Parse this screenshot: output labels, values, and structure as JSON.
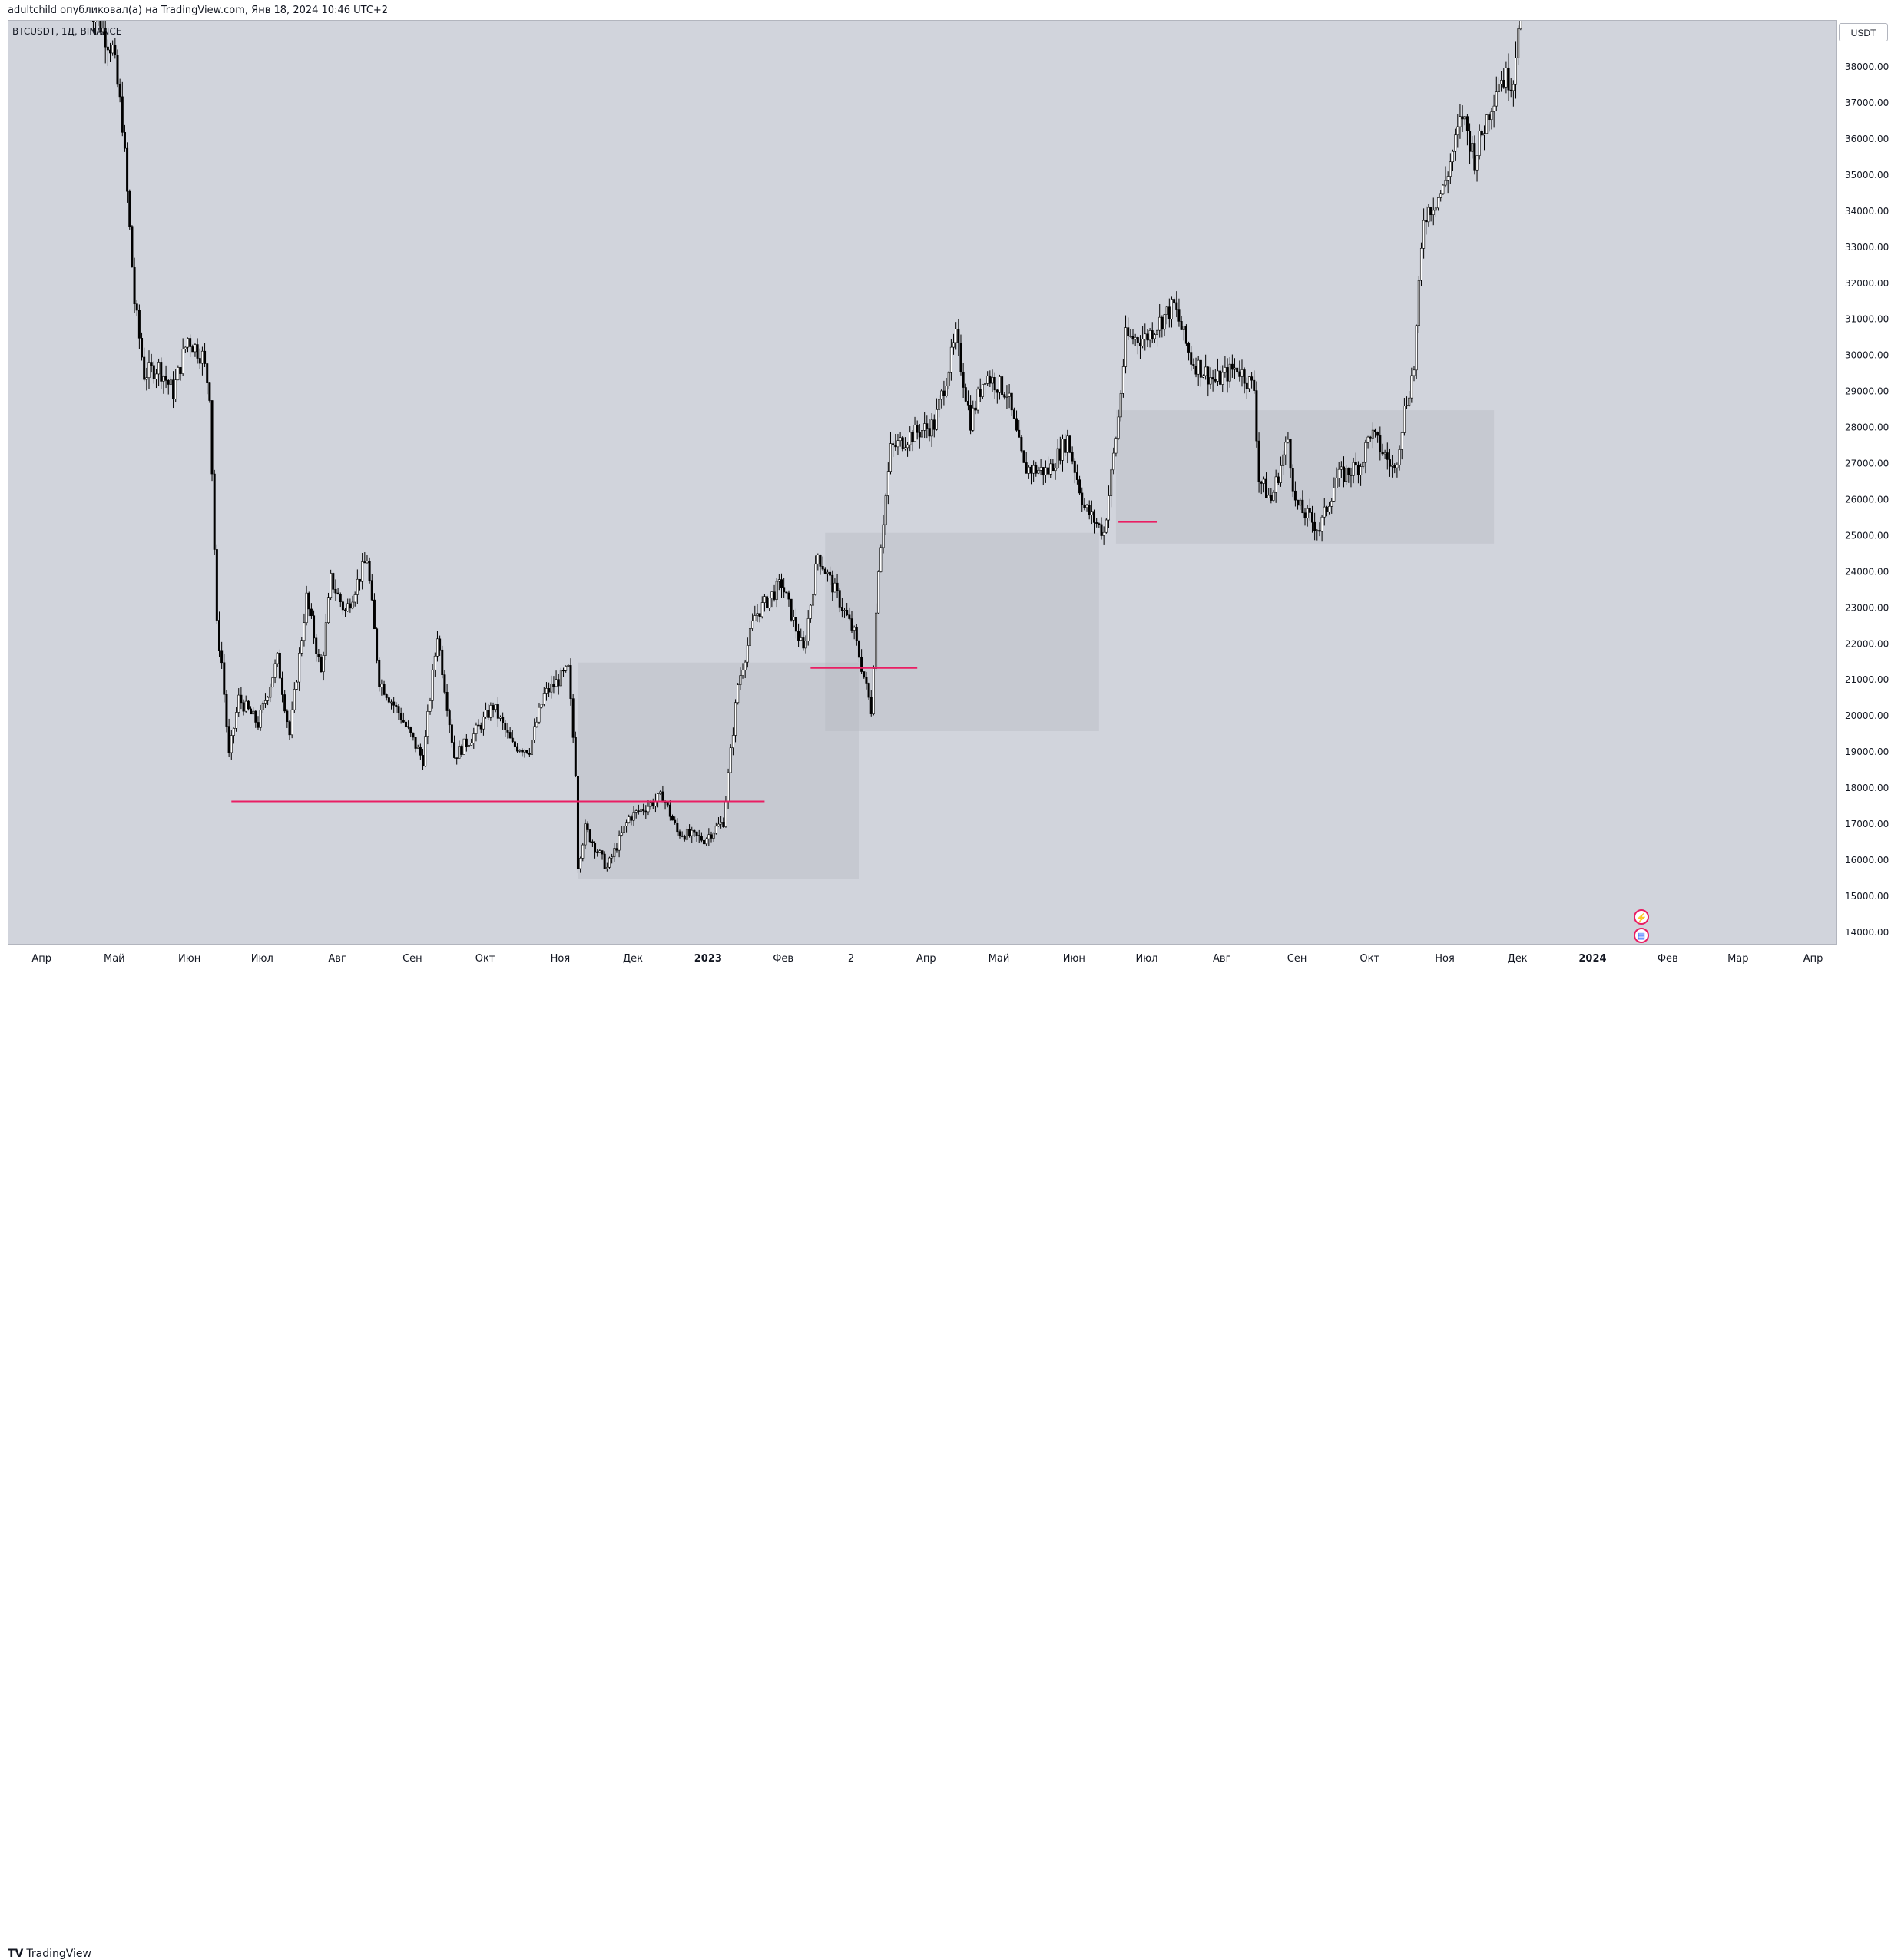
{
  "header": {
    "text": "adultchild опубликовал(а) на TradingView.com, Янв 18, 2024 10:46 UTC+2"
  },
  "symbol": {
    "label": "BTCUSDT, 1Д, BINANCE"
  },
  "currency": "USDT",
  "footer": {
    "logo_mark": "TV",
    "logo_text": "TradingView"
  },
  "event_icons": [
    {
      "name": "flash-icon",
      "glyph": "⚡"
    },
    {
      "name": "us-flag-icon",
      "glyph": "▤"
    }
  ],
  "colors": {
    "background": "#d1d4dc",
    "candle": "#000000",
    "zone_fill": "#b2b5be",
    "level_line": "#e91e63",
    "accent": "#e91e63"
  },
  "chart_data": {
    "type": "candlestick",
    "title": "",
    "symbol": "BTCUSDT",
    "timeframe": "1Д",
    "exchange": "BINANCE",
    "ylim": [
      13700,
      39300
    ],
    "y_ticks": [
      14000,
      15000,
      16000,
      17000,
      18000,
      19000,
      20000,
      21000,
      22000,
      23000,
      24000,
      25000,
      26000,
      27000,
      28000,
      29000,
      30000,
      31000,
      32000,
      33000,
      34000,
      35000,
      36000,
      37000,
      38000
    ],
    "y_tick_labels": [
      "14000.00",
      "15000.00",
      "16000.00",
      "17000.00",
      "18000.00",
      "19000.00",
      "20000.00",
      "21000.00",
      "22000.00",
      "23000.00",
      "24000.00",
      "25000.00",
      "26000.00",
      "27000.00",
      "28000.00",
      "29000.00",
      "30000.00",
      "31000.00",
      "32000.00",
      "33000.00",
      "34000.00",
      "35000.00",
      "36000.00",
      "37000.00",
      "38000.00"
    ],
    "x_tick_labels": [
      {
        "label": "Апр",
        "date": "2022-04-01",
        "bold": false
      },
      {
        "label": "Май",
        "date": "2022-05-01",
        "bold": false
      },
      {
        "label": "Июн",
        "date": "2022-06-01",
        "bold": false
      },
      {
        "label": "Июл",
        "date": "2022-07-01",
        "bold": false
      },
      {
        "label": "Авг",
        "date": "2022-08-01",
        "bold": false
      },
      {
        "label": "Сен",
        "date": "2022-09-01",
        "bold": false
      },
      {
        "label": "Окт",
        "date": "2022-10-01",
        "bold": false
      },
      {
        "label": "Ноя",
        "date": "2022-11-01",
        "bold": false
      },
      {
        "label": "Дек",
        "date": "2022-12-01",
        "bold": false
      },
      {
        "label": "2023",
        "date": "2023-01-01",
        "bold": true
      },
      {
        "label": "Фев",
        "date": "2023-02-01",
        "bold": false
      },
      {
        "label": "2",
        "date": "2023-03-01",
        "bold": false
      },
      {
        "label": "Апр",
        "date": "2023-04-01",
        "bold": false
      },
      {
        "label": "Май",
        "date": "2023-05-01",
        "bold": false
      },
      {
        "label": "Июн",
        "date": "2023-06-01",
        "bold": false
      },
      {
        "label": "Июл",
        "date": "2023-07-01",
        "bold": false
      },
      {
        "label": "Авг",
        "date": "2023-08-01",
        "bold": false
      },
      {
        "label": "Сен",
        "date": "2023-09-01",
        "bold": false
      },
      {
        "label": "Окт",
        "date": "2023-10-01",
        "bold": false
      },
      {
        "label": "Ноя",
        "date": "2023-11-01",
        "bold": false
      },
      {
        "label": "Дек",
        "date": "2023-12-01",
        "bold": false
      },
      {
        "label": "2024",
        "date": "2024-01-01",
        "bold": true
      },
      {
        "label": "Фев",
        "date": "2024-02-01",
        "bold": false
      },
      {
        "label": "Мар",
        "date": "2024-03-01",
        "bold": false
      },
      {
        "label": "Апр",
        "date": "2024-04-01",
        "bold": false
      }
    ],
    "x_start": "2022-03-18",
    "x_end": "2024-04-10",
    "price_path": [
      [
        "2022-04-20",
        40000
      ],
      [
        "2022-05-01",
        38500
      ],
      [
        "2022-05-05",
        36500
      ],
      [
        "2022-05-10",
        31500
      ],
      [
        "2022-05-14",
        29500
      ],
      [
        "2022-05-20",
        29700
      ],
      [
        "2022-05-26",
        29000
      ],
      [
        "2022-06-01",
        30500
      ],
      [
        "2022-06-07",
        30000
      ],
      [
        "2022-06-10",
        29000
      ],
      [
        "2022-06-13",
        22500
      ],
      [
        "2022-06-15",
        21500
      ],
      [
        "2022-06-18",
        18900
      ],
      [
        "2022-06-22",
        20500
      ],
      [
        "2022-06-30",
        19800
      ],
      [
        "2022-07-08",
        21600
      ],
      [
        "2022-07-13",
        19500
      ],
      [
        "2022-07-20",
        23300
      ],
      [
        "2022-07-26",
        21200
      ],
      [
        "2022-07-30",
        23800
      ],
      [
        "2022-08-05",
        22900
      ],
      [
        "2022-08-14",
        24400
      ],
      [
        "2022-08-19",
        21000
      ],
      [
        "2022-08-28",
        20000
      ],
      [
        "2022-09-06",
        18800
      ],
      [
        "2022-09-12",
        22300
      ],
      [
        "2022-09-19",
        18900
      ],
      [
        "2022-09-27",
        19500
      ],
      [
        "2022-10-05",
        20300
      ],
      [
        "2022-10-13",
        19200
      ],
      [
        "2022-10-20",
        19100
      ],
      [
        "2022-10-26",
        20600
      ],
      [
        "2022-11-05",
        21300
      ],
      [
        "2022-11-08",
        18500
      ],
      [
        "2022-11-09",
        15900
      ],
      [
        "2022-11-12",
        16900
      ],
      [
        "2022-11-21",
        15800
      ],
      [
        "2022-11-30",
        17200
      ],
      [
        "2022-12-14",
        17800
      ],
      [
        "2022-12-20",
        16800
      ],
      [
        "2022-12-31",
        16600
      ],
      [
        "2023-01-08",
        17100
      ],
      [
        "2023-01-14",
        20900
      ],
      [
        "2023-01-21",
        22800
      ],
      [
        "2023-02-01",
        23700
      ],
      [
        "2023-02-10",
        21800
      ],
      [
        "2023-02-16",
        24500
      ],
      [
        "2023-02-25",
        23200
      ],
      [
        "2023-03-03",
        22300
      ],
      [
        "2023-03-10",
        20200
      ],
      [
        "2023-03-13",
        24200
      ],
      [
        "2023-03-18",
        27400
      ],
      [
        "2023-03-26",
        27800
      ],
      [
        "2023-04-05",
        28100
      ],
      [
        "2023-04-14",
        30500
      ],
      [
        "2023-04-20",
        28200
      ],
      [
        "2023-04-26",
        29500
      ],
      [
        "2023-05-05",
        29000
      ],
      [
        "2023-05-12",
        26900
      ],
      [
        "2023-05-22",
        26800
      ],
      [
        "2023-05-30",
        27700
      ],
      [
        "2023-06-06",
        25800
      ],
      [
        "2023-06-14",
        25100
      ],
      [
        "2023-06-20",
        28300
      ],
      [
        "2023-06-23",
        30500
      ],
      [
        "2023-07-01",
        30500
      ],
      [
        "2023-07-13",
        31400
      ],
      [
        "2023-07-20",
        29900
      ],
      [
        "2023-07-30",
        29300
      ],
      [
        "2023-08-08",
        29700
      ],
      [
        "2023-08-15",
        29100
      ],
      [
        "2023-08-17",
        26600
      ],
      [
        "2023-08-22",
        26000
      ],
      [
        "2023-08-29",
        27700
      ],
      [
        "2023-09-01",
        25900
      ],
      [
        "2023-09-11",
        25200
      ],
      [
        "2023-09-18",
        26600
      ],
      [
        "2023-09-28",
        27000
      ],
      [
        "2023-10-02",
        27900
      ],
      [
        "2023-10-12",
        26800
      ],
      [
        "2023-10-16",
        28500
      ],
      [
        "2023-10-20",
        29700
      ],
      [
        "2023-10-24",
        33900
      ],
      [
        "2023-11-01",
        34600
      ],
      [
        "2023-11-09",
        36700
      ],
      [
        "2023-11-14",
        35500
      ],
      [
        "2023-11-24",
        37700
      ],
      [
        "2023-11-30",
        37700
      ],
      [
        "2023-12-04",
        41000
      ]
    ],
    "zones": [
      {
        "from": "2022-11-08",
        "to": "2023-03-04",
        "low": 15500,
        "high": 21500
      },
      {
        "from": "2023-02-18",
        "to": "2023-06-11",
        "low": 19600,
        "high": 25100
      },
      {
        "from": "2023-06-18",
        "to": "2023-11-21",
        "low": 24800,
        "high": 28500
      }
    ],
    "levels": [
      {
        "from": "2022-06-18",
        "to": "2023-01-24",
        "price": 17650
      },
      {
        "from": "2023-02-12",
        "to": "2023-03-28",
        "price": 21350
      },
      {
        "from": "2023-06-19",
        "to": "2023-07-05",
        "price": 25400
      }
    ]
  }
}
